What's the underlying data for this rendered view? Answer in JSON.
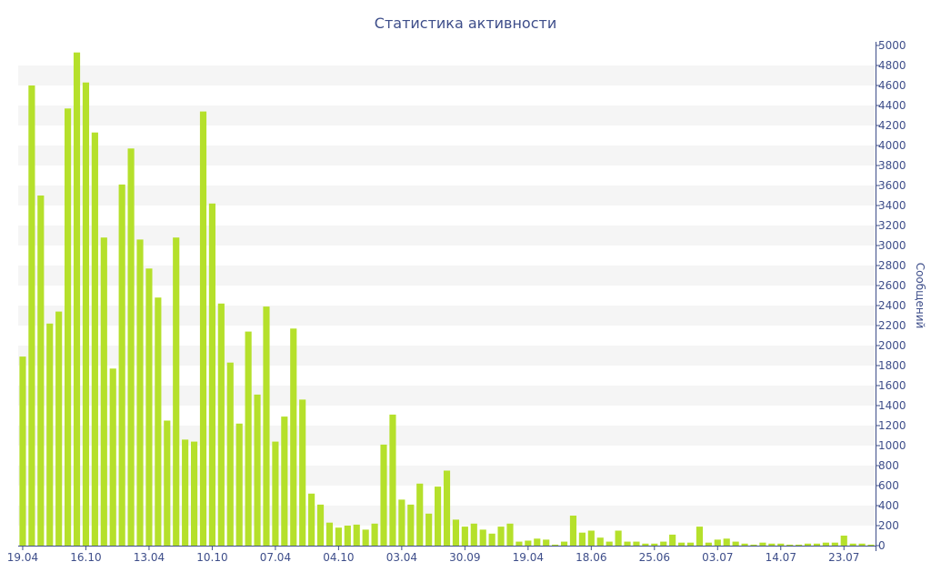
{
  "chart_data": {
    "type": "bar",
    "title": "Статистика активности",
    "xlabel": "",
    "ylabel": "Сообщений",
    "ylim": [
      0,
      5000
    ],
    "y_ticks": [
      0,
      200,
      400,
      600,
      800,
      1000,
      1200,
      1400,
      1600,
      1800,
      2000,
      2200,
      2400,
      2600,
      2800,
      3000,
      3200,
      3400,
      3600,
      3800,
      4000,
      4200,
      4400,
      4600,
      4800,
      5000
    ],
    "x_tick_labels": [
      {
        "index": 0,
        "label": "19.04"
      },
      {
        "index": 7,
        "label": "16.10"
      },
      {
        "index": 14,
        "label": "13.04"
      },
      {
        "index": 21,
        "label": "10.10"
      },
      {
        "index": 28,
        "label": "07.04"
      },
      {
        "index": 35,
        "label": "04.10"
      },
      {
        "index": 42,
        "label": "03.04"
      },
      {
        "index": 49,
        "label": "30.09"
      },
      {
        "index": 56,
        "label": "19.04"
      },
      {
        "index": 63,
        "label": "18.06"
      },
      {
        "index": 70,
        "label": "25.06"
      },
      {
        "index": 77,
        "label": "03.07"
      },
      {
        "index": 84,
        "label": "14.07"
      },
      {
        "index": 91,
        "label": "23.07"
      }
    ],
    "values": [
      1890,
      4600,
      3500,
      2220,
      2340,
      4370,
      4930,
      4630,
      4130,
      3080,
      1770,
      3610,
      3970,
      3060,
      2770,
      2480,
      1250,
      3080,
      1060,
      1040,
      4340,
      3420,
      2420,
      1830,
      1220,
      2140,
      1510,
      2390,
      1040,
      1290,
      2170,
      1460,
      520,
      410,
      230,
      180,
      200,
      210,
      160,
      220,
      1010,
      1310,
      460,
      410,
      620,
      320,
      590,
      750,
      260,
      190,
      220,
      160,
      120,
      190,
      220,
      40,
      50,
      70,
      60,
      10,
      40,
      300,
      130,
      150,
      80,
      40,
      150,
      40,
      40,
      20,
      20,
      40,
      110,
      30,
      30,
      190,
      30,
      60,
      70,
      40,
      20,
      10,
      30,
      20,
      20,
      10,
      10,
      20,
      20,
      30,
      30,
      100,
      20,
      20,
      10
    ],
    "grid": true,
    "legend": "none",
    "bar_color": "#b5e02b",
    "band_color": "#f5f5f5",
    "text_color": "#3e4e8a",
    "axis_color": "#3e4e8a"
  }
}
